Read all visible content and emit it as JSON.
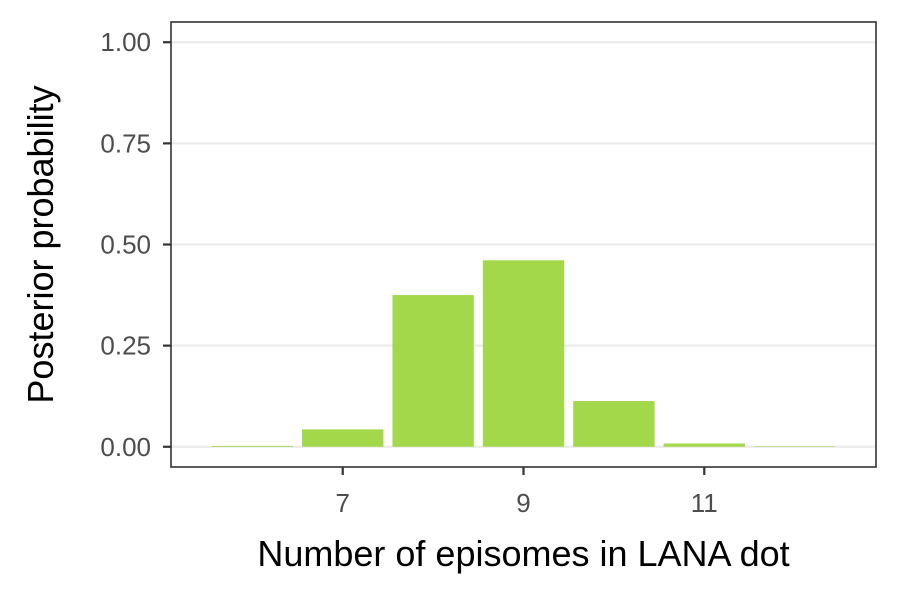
{
  "chart_data": {
    "type": "bar",
    "title": "",
    "xlabel": "Number of episomes in LANA dot",
    "ylabel": "Posterior probability",
    "x": [
      6,
      7,
      8,
      9,
      10,
      11,
      12
    ],
    "values": [
      0.002,
      0.043,
      0.375,
      0.461,
      0.113,
      0.008,
      0.001
    ],
    "xticks": [
      7,
      9,
      11
    ],
    "xtick_labels": [
      "7",
      "9",
      "11"
    ],
    "xlim": [
      5.1,
      12.9
    ],
    "ylim": [
      -0.05,
      1.05
    ],
    "yticks": [
      0,
      0.25,
      0.5,
      0.75,
      1.0
    ],
    "ytick_labels": [
      "0.00",
      "0.25",
      "0.50",
      "0.75",
      "1.00"
    ],
    "grid": "horizontal",
    "bar_color": "#a2d84a",
    "grid_color": "#ebebeb",
    "panel_border_color": "#333333"
  }
}
